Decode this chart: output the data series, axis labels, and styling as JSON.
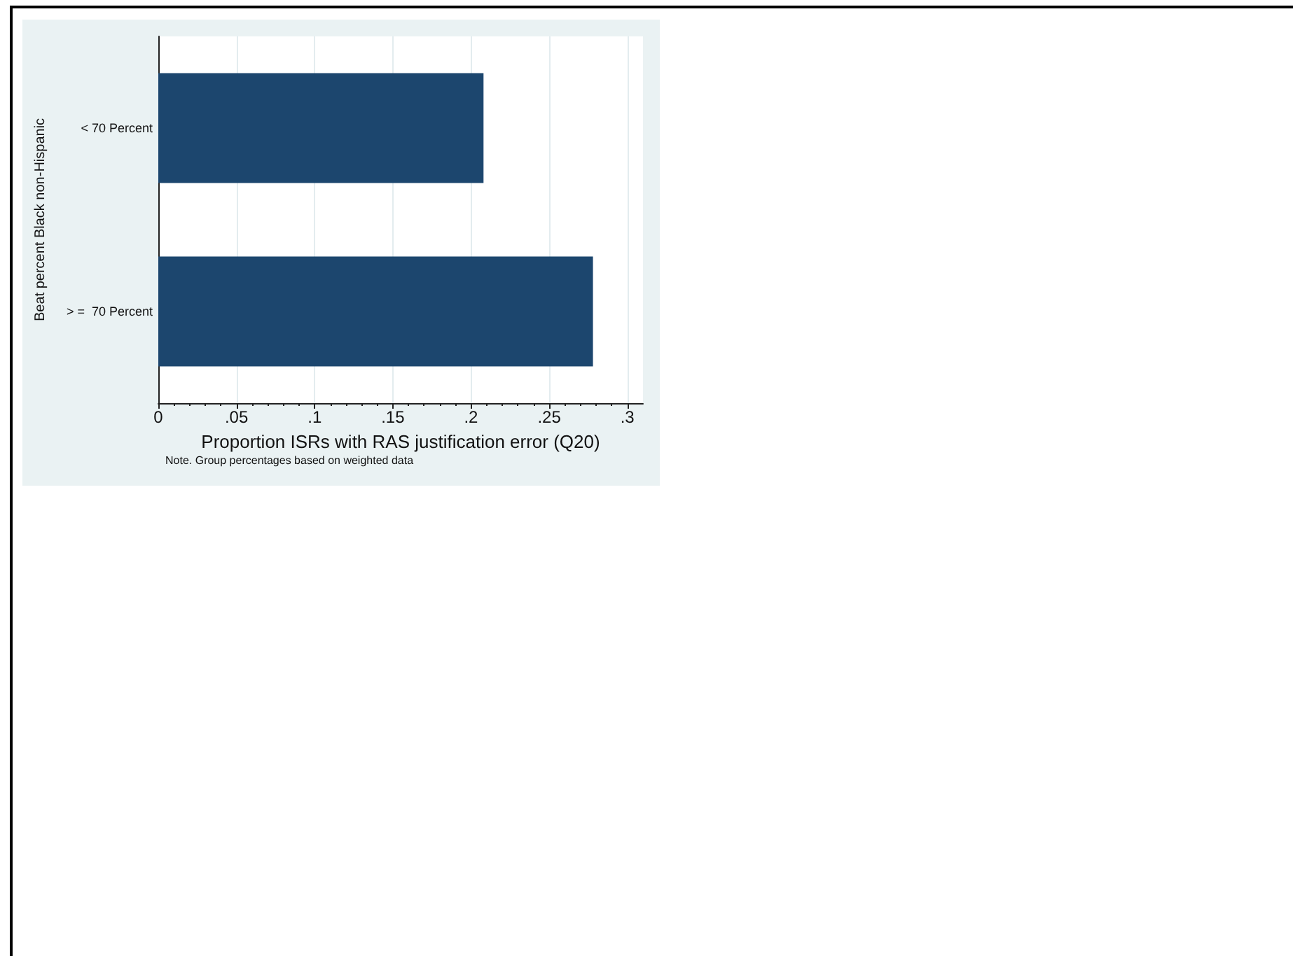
{
  "chart_data": {
    "type": "bar",
    "orientation": "horizontal",
    "categories": [
      "< 70 Percent",
      "> =  70 Percent"
    ],
    "values": [
      0.208,
      0.278
    ],
    "color": "#1c466e",
    "xlim": [
      0,
      0.31
    ],
    "xticks": [
      0,
      {
        "value": 0.05,
        "label": ".05"
      },
      {
        "value": 0.1,
        "label": ".1"
      },
      {
        "value": 0.15,
        "label": ".15"
      },
      {
        "value": 0.2,
        "label": ".2"
      },
      {
        "value": 0.25,
        "label": ".25"
      },
      {
        "value": 0.3,
        "label": ".3"
      }
    ],
    "xlabel": "Proportion ISRs with RAS justification error (Q20)",
    "ylabel": "Beat percent Black non-Hispanic",
    "grid": "x",
    "annotations": [
      "Note. Group percentages based on weighted data"
    ]
  }
}
